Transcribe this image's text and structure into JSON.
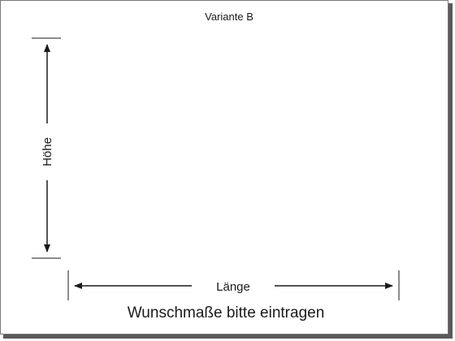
{
  "title": "Variante B",
  "height_label": "Höhe",
  "length_label": "Länge",
  "instruction": "Wunschmaße bitte eintragen",
  "colors": {
    "line": "#1a1a1a",
    "frame": "#7a7a7a",
    "shadow": "#5a5a5a",
    "background": "#ffffff"
  }
}
